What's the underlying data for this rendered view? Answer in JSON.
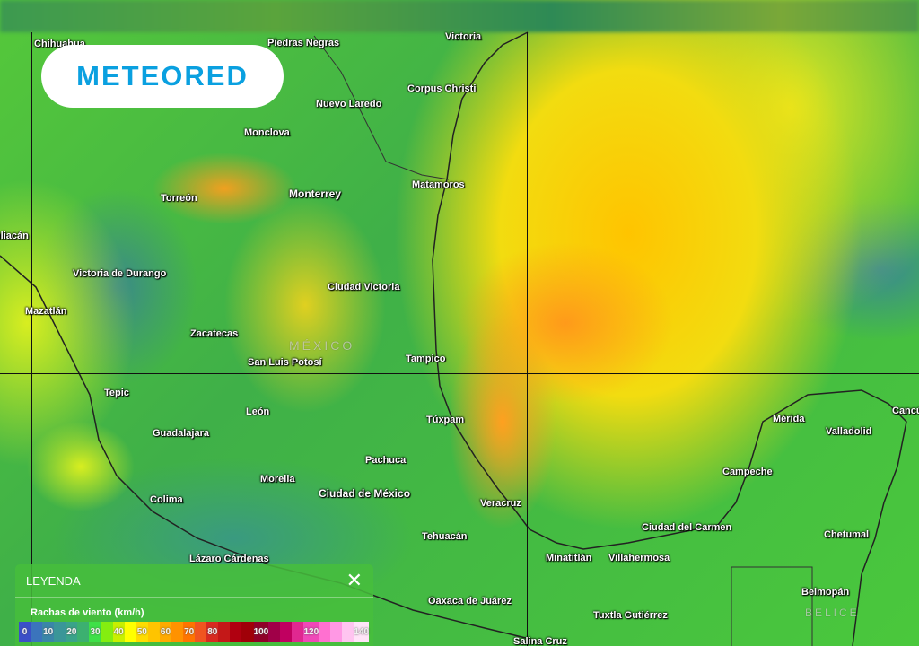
{
  "brand": "METEORED",
  "map": {
    "country_labels": [
      "MÉXICO",
      "BELICE"
    ],
    "cities": [
      "Chihuahua",
      "Piedras Negras",
      "Victoria",
      "Corpus Christi",
      "Nuevo Laredo",
      "Monclova",
      "Monterrey",
      "Matamoros",
      "Torreón",
      "Culiacán",
      "Victoria de Durango",
      "Ciudad Victoria",
      "Mazatlán",
      "Zacatecas",
      "San Luis Potosí",
      "Tampico",
      "Tepic",
      "León",
      "Guadalajara",
      "Túxpam",
      "Mérida",
      "Valladolid",
      "Cancún",
      "Pachuca",
      "Morelia",
      "Ciudad de México",
      "Campeche",
      "Colima",
      "Veracruz",
      "Tehuacán",
      "Ciudad del Carmen",
      "Chetumal",
      "Lázaro Cárdenas",
      "Minatitlán",
      "Villahermosa",
      "Oaxaca de Juárez",
      "Belmopán",
      "Tuxtla Gutiérrez",
      "Salina Cruz"
    ]
  },
  "legend": {
    "title": "LEYENDA",
    "close_icon": "close-icon",
    "variable": "Rachas de viento (km/h)",
    "scale": [
      {
        "label": "0",
        "color": "#3b4fc8"
      },
      {
        "label": "",
        "color": "#3b74bc"
      },
      {
        "label": "10",
        "color": "#3a86a8"
      },
      {
        "label": "",
        "color": "#3a9698"
      },
      {
        "label": "20",
        "color": "#3aa38a"
      },
      {
        "label": "",
        "color": "#3cb070"
      },
      {
        "label": "30",
        "color": "#3ee048"
      },
      {
        "label": "",
        "color": "#84ee10"
      },
      {
        "label": "40",
        "color": "#c8f000"
      },
      {
        "label": "",
        "color": "#ffff00"
      },
      {
        "label": "50",
        "color": "#ffdc00"
      },
      {
        "label": "",
        "color": "#ffc400"
      },
      {
        "label": "60",
        "color": "#ffaa00"
      },
      {
        "label": "",
        "color": "#ff9200"
      },
      {
        "label": "70",
        "color": "#ff7400"
      },
      {
        "label": "",
        "color": "#f05520"
      },
      {
        "label": "80",
        "color": "#d82a20"
      },
      {
        "label": "",
        "color": "#c41818"
      },
      {
        "label": "",
        "color": "#b00010"
      },
      {
        "label": "",
        "color": "#a00008"
      },
      {
        "label": "100",
        "color": "#900028"
      },
      {
        "label": "",
        "color": "#a00048"
      },
      {
        "label": "",
        "color": "#c00060"
      },
      {
        "label": "",
        "color": "#e02890"
      },
      {
        "label": "120",
        "color": "#f048b8"
      },
      {
        "label": "",
        "color": "#ff70d0"
      },
      {
        "label": "",
        "color": "#ff98e4"
      },
      {
        "label": "",
        "color": "#ffc4f0"
      },
      {
        "label": "140",
        "color": "#ffe4f8"
      }
    ]
  }
}
